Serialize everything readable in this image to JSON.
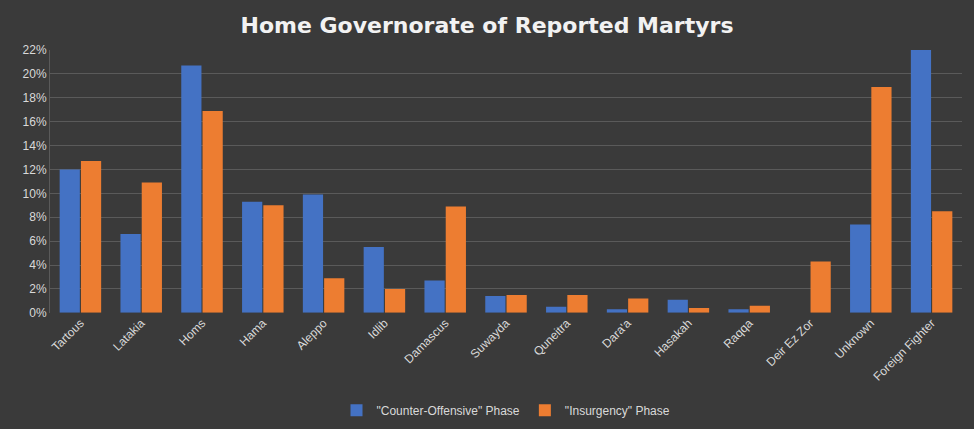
{
  "chart_data": {
    "type": "bar",
    "title": "Home Governorate of Reported Martyrs",
    "categories": [
      "Tartous",
      "Latakia",
      "Homs",
      "Hama",
      "Aleppo",
      "Idlib",
      "Damascus",
      "Suwayda",
      "Quneitra",
      "Dara'a",
      "Hasakah",
      "Raqqa",
      "Deir Ez Zor",
      "Unknown",
      "Foreign Fighter"
    ],
    "series": [
      {
        "name": "\"Counter-Offensive\" Phase",
        "color": "#4472c4",
        "values": [
          12.0,
          6.6,
          20.7,
          9.3,
          9.9,
          5.5,
          2.7,
          1.4,
          0.5,
          0.3,
          1.1,
          0.3,
          0,
          7.4,
          22.0
        ]
      },
      {
        "name": "\"Insurgency\" Phase",
        "color": "#ed7d31",
        "values": [
          12.7,
          10.9,
          16.9,
          9.0,
          2.9,
          2.0,
          8.9,
          1.5,
          1.5,
          1.2,
          0.4,
          0.6,
          4.3,
          18.9,
          8.5
        ]
      }
    ],
    "ylim": [
      0,
      22
    ],
    "yticks": [
      {
        "value": 0,
        "label": "0%"
      },
      {
        "value": 2,
        "label": "2%"
      },
      {
        "value": 4,
        "label": "4%"
      },
      {
        "value": 6,
        "label": "6%"
      },
      {
        "value": 8,
        "label": "8%"
      },
      {
        "value": 10,
        "label": "10%"
      },
      {
        "value": 12,
        "label": "12%"
      },
      {
        "value": 14,
        "label": "14%"
      },
      {
        "value": 16,
        "label": "16%"
      },
      {
        "value": 18,
        "label": "18%"
      },
      {
        "value": 20,
        "label": "20%"
      },
      {
        "value": 22,
        "label": "22%"
      }
    ],
    "grid": true,
    "legend": "bottom"
  }
}
